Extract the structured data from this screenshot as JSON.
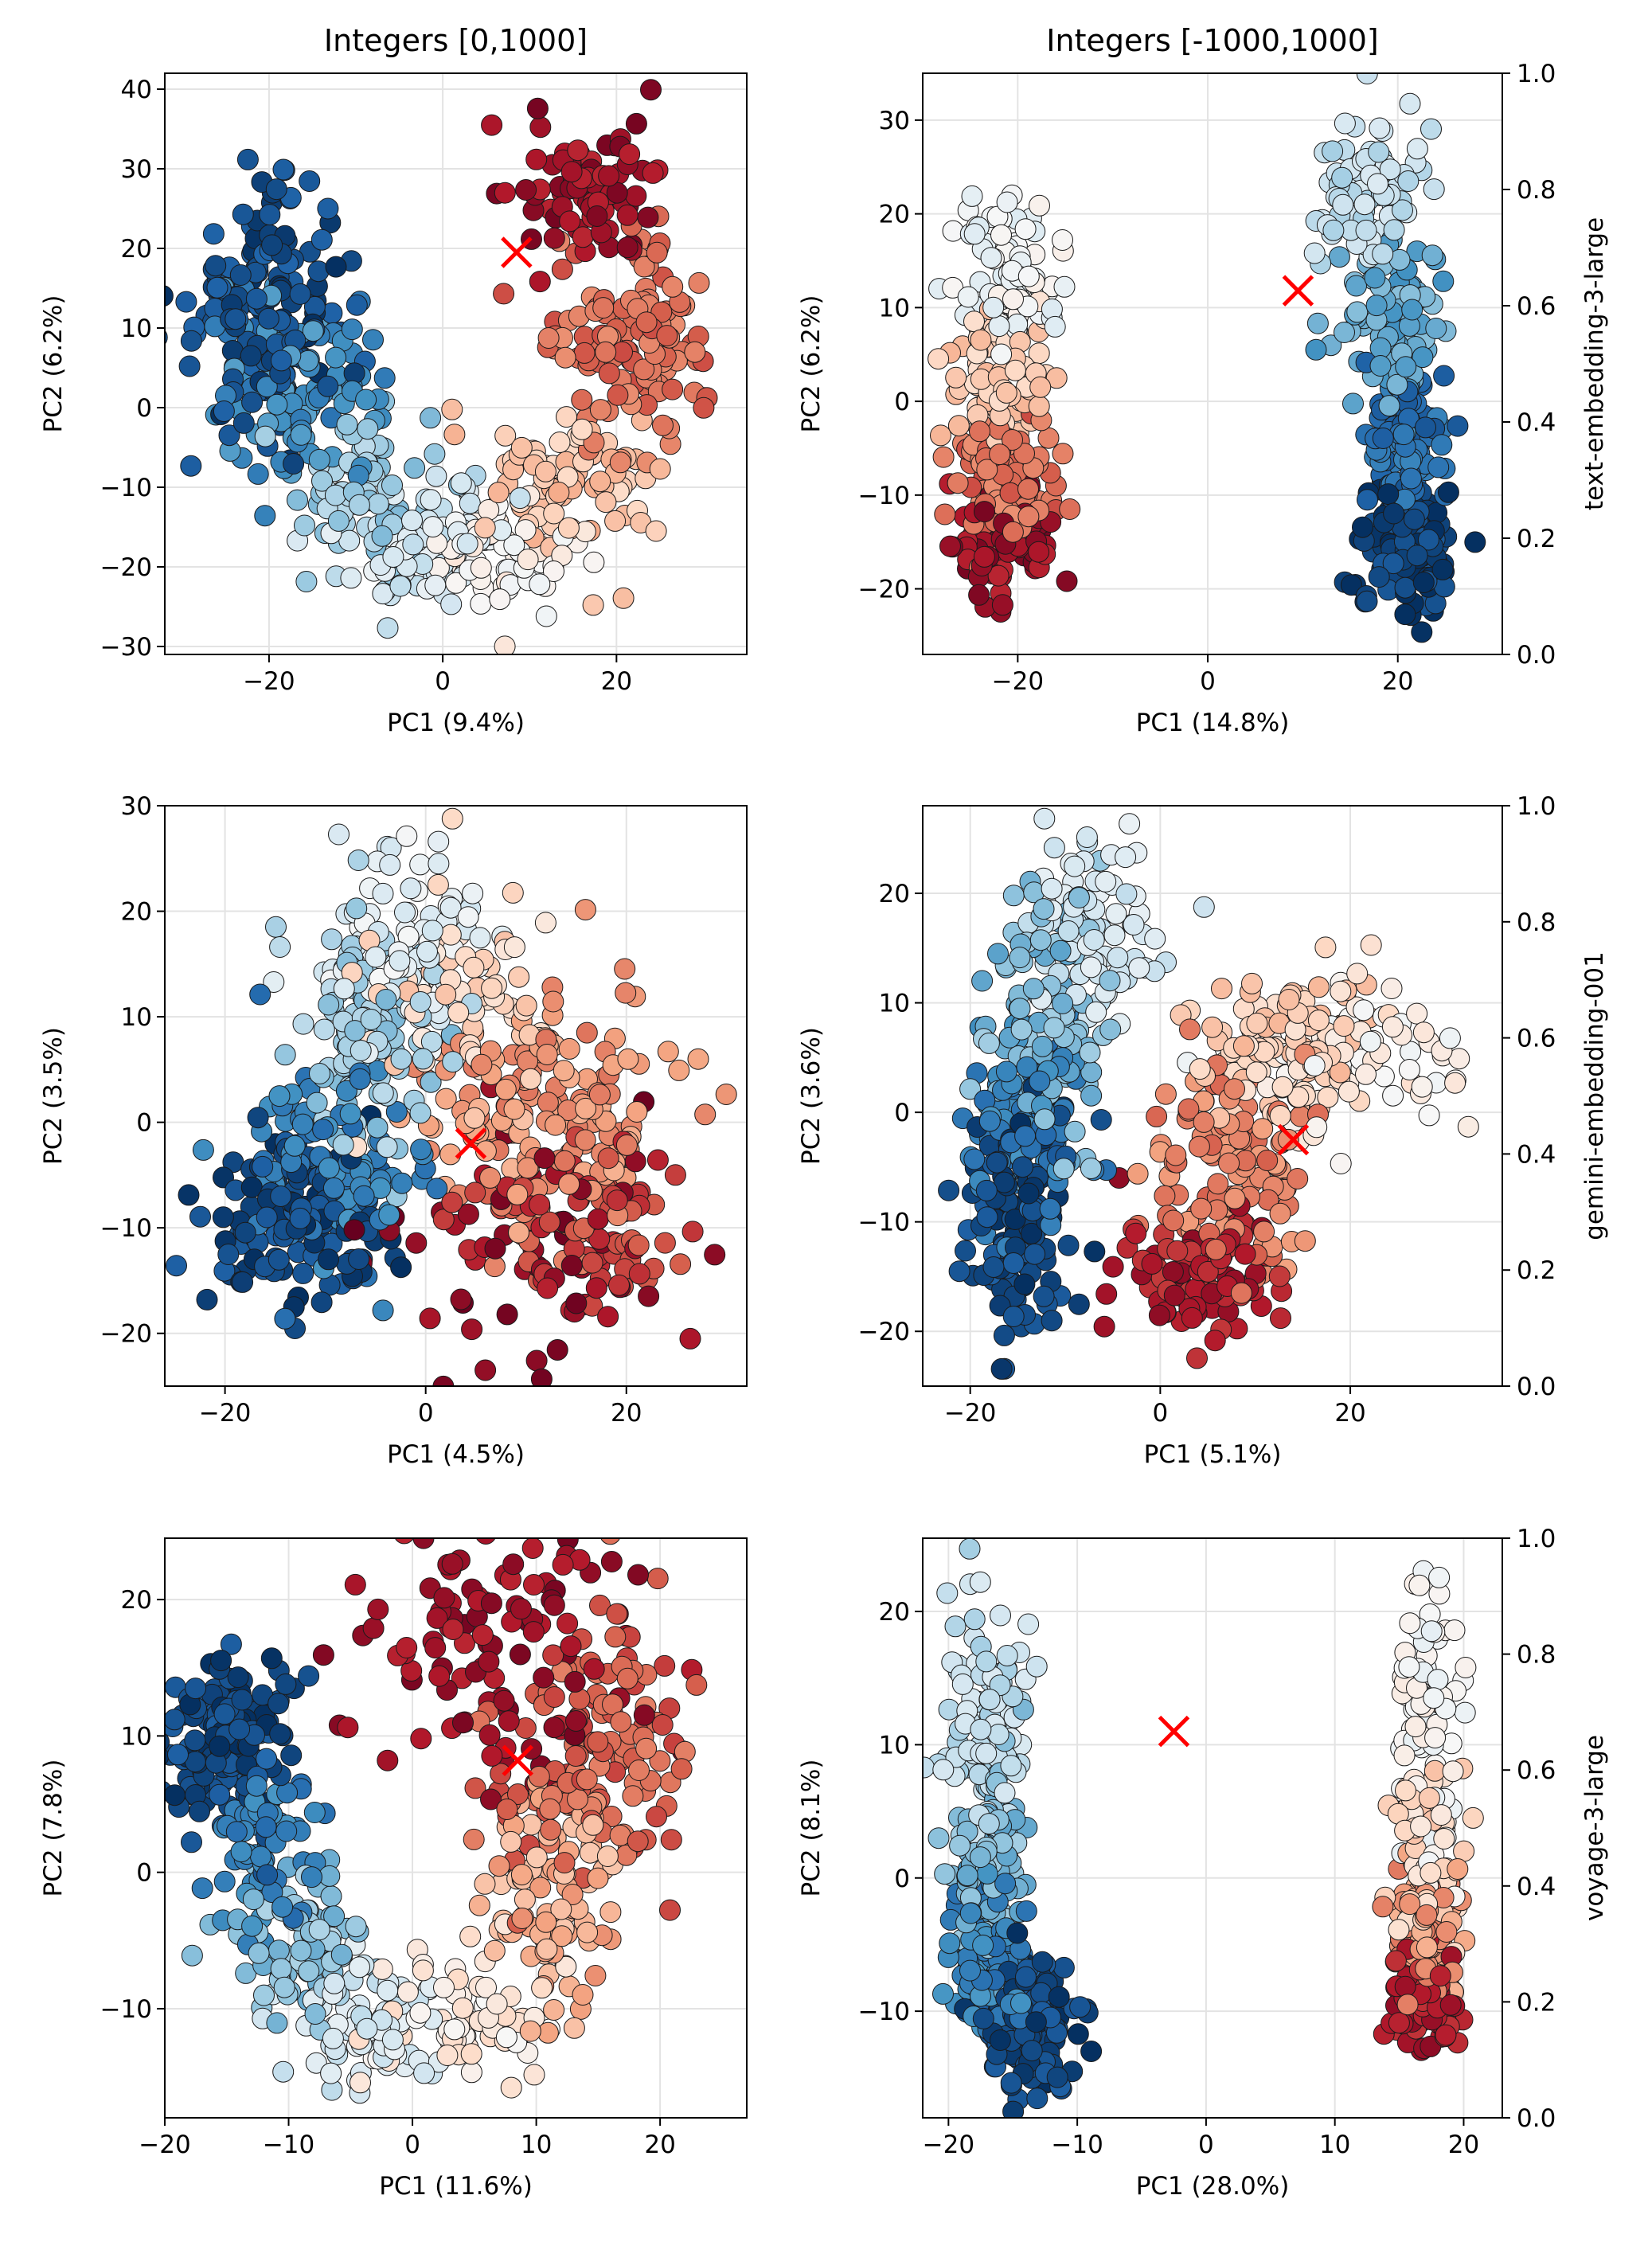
{
  "figure": {
    "column_titles": [
      "Integers [0,1000]",
      "Integers [-1000,1000]"
    ],
    "colorbar_ticks": [
      "0.0",
      "0.2",
      "0.4",
      "0.6",
      "0.8",
      "1.0"
    ],
    "colormap": "RdBu_r",
    "marker_color": "#ff0000"
  },
  "chart_data": [
    {
      "type": "scatter",
      "row": 0,
      "col": 0,
      "model": "text-embedding-3-large",
      "range": "Integers [0,1000]",
      "xlabel": "PC1 (9.4%)",
      "ylabel": "PC2 (6.2%)",
      "xlim": [
        -32,
        35
      ],
      "ylim": [
        -31,
        42
      ],
      "xticks": [
        -20,
        0,
        20
      ],
      "yticks": [
        -30,
        -20,
        -10,
        0,
        10,
        20,
        30,
        40
      ],
      "grid": true,
      "highlight": {
        "x": 8.5,
        "y": 19.5
      },
      "clusters": [
        {
          "v": 0.05,
          "cx": -20,
          "cy": 12,
          "sx": 4.5,
          "sy": 7,
          "n": 150
        },
        {
          "v": 0.18,
          "cx": -16,
          "cy": 2,
          "sx": 5,
          "sy": 6,
          "n": 90
        },
        {
          "v": 0.32,
          "cx": -9,
          "cy": -10,
          "sx": 5,
          "sy": 5,
          "n": 70
        },
        {
          "v": 0.42,
          "cx": -2,
          "cy": -18,
          "sx": 5,
          "sy": 4,
          "n": 70
        },
        {
          "v": 0.52,
          "cx": 7,
          "cy": -18,
          "sx": 5,
          "sy": 4,
          "n": 70
        },
        {
          "v": 0.64,
          "cx": 16,
          "cy": -8,
          "sx": 5,
          "sy": 5,
          "n": 80
        },
        {
          "v": 0.78,
          "cx": 22,
          "cy": 8,
          "sx": 5,
          "sy": 6,
          "n": 130
        },
        {
          "v": 0.93,
          "cx": 17,
          "cy": 27,
          "sx": 5,
          "sy": 5,
          "n": 80
        }
      ]
    },
    {
      "type": "scatter",
      "row": 0,
      "col": 1,
      "model": "text-embedding-3-large",
      "range": "Integers [-1000,1000]",
      "xlabel": "PC1 (14.8%)",
      "ylabel": "PC2 (6.2%)",
      "xlim": [
        -30,
        31
      ],
      "ylim": [
        -27,
        35
      ],
      "xticks": [
        -20,
        0,
        20
      ],
      "yticks": [
        -20,
        -10,
        0,
        10,
        20,
        30
      ],
      "grid": true,
      "highlight": {
        "x": 9.5,
        "y": 11.8
      },
      "clusters": [
        {
          "v": 0.48,
          "cx": -21,
          "cy": 14,
          "sx": 2.5,
          "sy": 4,
          "n": 90
        },
        {
          "v": 0.62,
          "cx": -22,
          "cy": 3,
          "sx": 2.5,
          "sy": 4,
          "n": 90
        },
        {
          "v": 0.78,
          "cx": -21,
          "cy": -8,
          "sx": 2.5,
          "sy": 3.5,
          "n": 100
        },
        {
          "v": 0.93,
          "cx": -21,
          "cy": -15,
          "sx": 3,
          "sy": 3,
          "n": 80
        },
        {
          "v": 0.38,
          "cx": 17,
          "cy": 22,
          "sx": 2.5,
          "sy": 4,
          "n": 80
        },
        {
          "v": 0.24,
          "cx": 20,
          "cy": 8,
          "sx": 2.5,
          "sy": 4,
          "n": 100
        },
        {
          "v": 0.12,
          "cx": 21,
          "cy": -4,
          "sx": 2,
          "sy": 3.5,
          "n": 90
        },
        {
          "v": 0.03,
          "cx": 21,
          "cy": -16,
          "sx": 2.5,
          "sy": 3.5,
          "n": 130
        }
      ]
    },
    {
      "type": "scatter",
      "row": 1,
      "col": 0,
      "model": "gemini-embedding-001",
      "range": "Integers [0,1000]",
      "xlabel": "PC1 (4.5%)",
      "ylabel": "PC2 (3.5%)",
      "xlim": [
        -26,
        32
      ],
      "ylim": [
        -25,
        30
      ],
      "xticks": [
        -20,
        0,
        20
      ],
      "yticks": [
        -20,
        -10,
        0,
        10,
        20,
        30
      ],
      "grid": true,
      "highlight": {
        "x": 4.5,
        "y": -2
      },
      "clusters": [
        {
          "v": 0.04,
          "cx": -13,
          "cy": -9,
          "sx": 5,
          "sy": 4,
          "n": 140
        },
        {
          "v": 0.16,
          "cx": -9,
          "cy": -4,
          "sx": 5,
          "sy": 5,
          "n": 90
        },
        {
          "v": 0.32,
          "cx": -6,
          "cy": 8,
          "sx": 4,
          "sy": 6,
          "n": 110
        },
        {
          "v": 0.45,
          "cx": -2,
          "cy": 17,
          "sx": 4,
          "sy": 5,
          "n": 80
        },
        {
          "v": 0.6,
          "cx": 4,
          "cy": 12,
          "sx": 5,
          "sy": 5,
          "n": 70
        },
        {
          "v": 0.72,
          "cx": 12,
          "cy": 0,
          "sx": 6,
          "sy": 6,
          "n": 160
        },
        {
          "v": 0.84,
          "cx": 16,
          "cy": -10,
          "sx": 6,
          "sy": 4,
          "n": 80
        },
        {
          "v": 0.95,
          "cx": 10,
          "cy": -12,
          "sx": 8,
          "sy": 5,
          "n": 60
        }
      ]
    },
    {
      "type": "scatter",
      "row": 1,
      "col": 1,
      "model": "gemini-embedding-001",
      "range": "Integers [-1000,1000]",
      "xlabel": "PC1 (5.1%)",
      "ylabel": "PC2 (3.6%)",
      "xlim": [
        -25,
        36
      ],
      "ylim": [
        -25,
        28
      ],
      "xticks": [
        -20,
        0,
        20
      ],
      "yticks": [
        -20,
        -10,
        0,
        10,
        20
      ],
      "grid": true,
      "highlight": {
        "x": 14,
        "y": -2.5
      },
      "clusters": [
        {
          "v": 0.04,
          "cx": -15,
          "cy": -10,
          "sx": 3,
          "sy": 5,
          "n": 120
        },
        {
          "v": 0.16,
          "cx": -14,
          "cy": -1,
          "sx": 3,
          "sy": 5,
          "n": 90
        },
        {
          "v": 0.28,
          "cx": -12,
          "cy": 9,
          "sx": 3,
          "sy": 6,
          "n": 110
        },
        {
          "v": 0.42,
          "cx": -7,
          "cy": 17,
          "sx": 4,
          "sy": 5,
          "n": 80
        },
        {
          "v": 0.52,
          "cx": 22,
          "cy": 5,
          "sx": 6,
          "sy": 4,
          "n": 70
        },
        {
          "v": 0.62,
          "cx": 14,
          "cy": 6,
          "sx": 5,
          "sy": 4,
          "n": 110
        },
        {
          "v": 0.75,
          "cx": 8,
          "cy": -5,
          "sx": 4,
          "sy": 5,
          "n": 120
        },
        {
          "v": 0.9,
          "cx": 4,
          "cy": -15,
          "sx": 4,
          "sy": 3,
          "n": 90
        }
      ]
    },
    {
      "type": "scatter",
      "row": 2,
      "col": 0,
      "model": "voyage-3-large",
      "range": "Integers [0,1000]",
      "xlabel": "PC1 (11.6%)",
      "ylabel": "PC2 (7.8%)",
      "xlim": [
        -20,
        27
      ],
      "ylim": [
        -18,
        24.5
      ],
      "xticks": [
        -20,
        -10,
        0,
        10,
        20
      ],
      "yticks": [
        -10,
        0,
        10,
        20
      ],
      "grid": true,
      "highlight": {
        "x": 8.5,
        "y": 8.2
      },
      "clusters": [
        {
          "v": 0.04,
          "cx": -15,
          "cy": 10,
          "sx": 2.5,
          "sy": 3,
          "n": 150
        },
        {
          "v": 0.16,
          "cx": -12,
          "cy": 2,
          "sx": 2,
          "sy": 3,
          "n": 60
        },
        {
          "v": 0.3,
          "cx": -9,
          "cy": -5,
          "sx": 2.5,
          "sy": 3,
          "n": 80
        },
        {
          "v": 0.42,
          "cx": -4,
          "cy": -11,
          "sx": 3,
          "sy": 2.5,
          "n": 80
        },
        {
          "v": 0.55,
          "cx": 4,
          "cy": -10,
          "sx": 4,
          "sy": 2.5,
          "n": 70
        },
        {
          "v": 0.68,
          "cx": 11,
          "cy": -2,
          "sx": 3,
          "sy": 4,
          "n": 90
        },
        {
          "v": 0.8,
          "cx": 14,
          "cy": 8,
          "sx": 4,
          "sy": 5,
          "n": 130
        },
        {
          "v": 0.93,
          "cx": 8,
          "cy": 16,
          "sx": 6,
          "sy": 5,
          "n": 110
        }
      ]
    },
    {
      "type": "scatter",
      "row": 2,
      "col": 1,
      "model": "voyage-3-large",
      "range": "Integers [-1000,1000]",
      "xlabel": "PC1 (28.0%)",
      "ylabel": "PC2 (8.1%)",
      "xlim": [
        -22,
        23
      ],
      "ylim": [
        -18,
        25.5
      ],
      "xticks": [
        -20,
        -10,
        0,
        10,
        20
      ],
      "yticks": [
        -10,
        0,
        10,
        20
      ],
      "grid": true,
      "highlight": {
        "x": -2.5,
        "y": 11
      },
      "clusters": [
        {
          "v": 0.38,
          "cx": -17,
          "cy": 13,
          "sx": 1.5,
          "sy": 5,
          "n": 110
        },
        {
          "v": 0.28,
          "cx": -17,
          "cy": 2,
          "sx": 1.5,
          "sy": 4,
          "n": 100
        },
        {
          "v": 0.16,
          "cx": -17,
          "cy": -6,
          "sx": 1.8,
          "sy": 3,
          "n": 90
        },
        {
          "v": 0.04,
          "cx": -14,
          "cy": -11,
          "sx": 2,
          "sy": 2.5,
          "n": 130
        },
        {
          "v": 0.5,
          "cx": 17,
          "cy": 11,
          "sx": 1.3,
          "sy": 5,
          "n": 90
        },
        {
          "v": 0.6,
          "cx": 17,
          "cy": 2,
          "sx": 1.3,
          "sy": 3,
          "n": 80
        },
        {
          "v": 0.72,
          "cx": 17,
          "cy": -4,
          "sx": 1.3,
          "sy": 2.5,
          "n": 100
        },
        {
          "v": 0.9,
          "cx": 17,
          "cy": -9,
          "sx": 1.3,
          "sy": 2,
          "n": 90
        }
      ]
    }
  ]
}
